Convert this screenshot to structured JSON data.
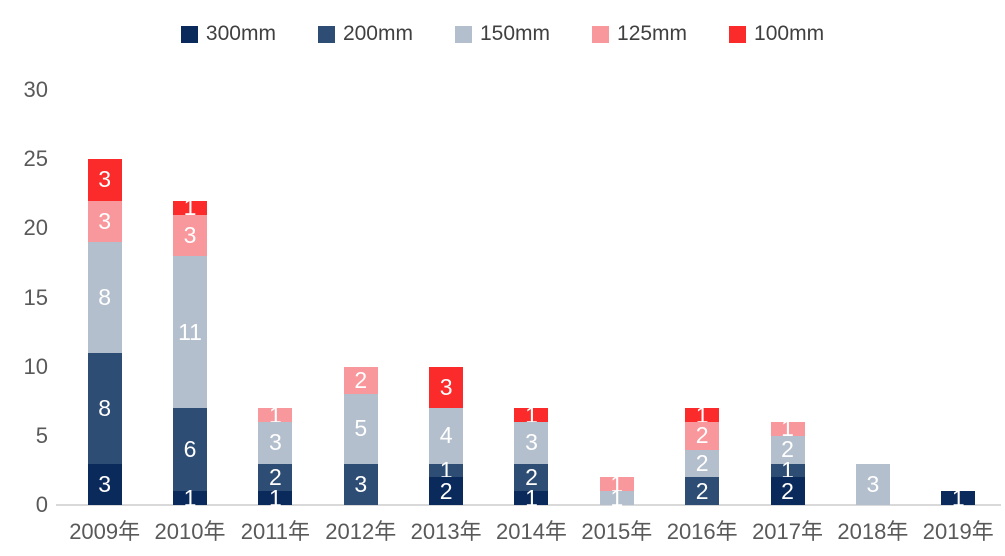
{
  "chart_data": {
    "type": "bar",
    "stacked": true,
    "title": "",
    "xlabel": "",
    "ylabel": "",
    "categories": [
      "2009年",
      "2010年",
      "2011年",
      "2012年",
      "2013年",
      "2014年",
      "2015年",
      "2016年",
      "2017年",
      "2018年",
      "2019年"
    ],
    "series": [
      {
        "name": "300mm",
        "color": "#0b2a5c",
        "values": [
          3,
          1,
          1,
          0,
          2,
          1,
          0,
          0,
          2,
          0,
          1
        ]
      },
      {
        "name": "200mm",
        "color": "#2e4d74",
        "values": [
          8,
          6,
          2,
          3,
          1,
          2,
          0,
          2,
          1,
          0,
          0
        ]
      },
      {
        "name": "150mm",
        "color": "#b4bfce",
        "values": [
          8,
          11,
          3,
          5,
          4,
          3,
          1,
          2,
          2,
          3,
          0
        ]
      },
      {
        "name": "125mm",
        "color": "#f9989c",
        "values": [
          3,
          3,
          1,
          2,
          0,
          0,
          1,
          2,
          1,
          0,
          0
        ]
      },
      {
        "name": "100mm",
        "color": "#fb2b2b",
        "values": [
          3,
          1,
          0,
          0,
          3,
          1,
          0,
          1,
          0,
          0,
          0
        ]
      }
    ],
    "totals": [
      25,
      22,
      7,
      10,
      10,
      7,
      2,
      7,
      6,
      3,
      1
    ],
    "ylim": [
      0,
      30
    ],
    "yticks": [
      0,
      5,
      10,
      15,
      20,
      25,
      30
    ],
    "grid": false,
    "legend_position": "top",
    "data_labels": "white numbers shown on every nonzero segment"
  },
  "style": {
    "axis_label_color": "#595959",
    "legend_text_color": "#404040",
    "baseline_color": "#d9d9d9",
    "background": "#ffffff",
    "data_label_color": "#ffffff"
  }
}
